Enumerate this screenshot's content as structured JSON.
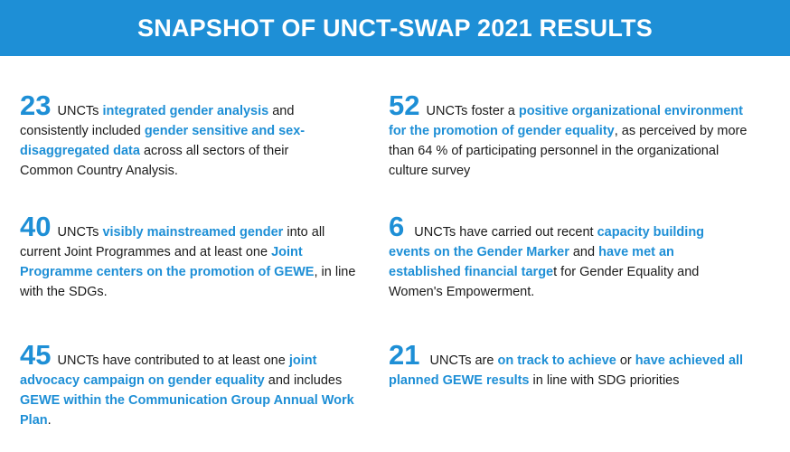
{
  "header": {
    "title": "SNAPSHOT OF UNCT-SWAP 2021 RESULTS",
    "accent_color": "#1e8fd6"
  },
  "stats": [
    {
      "number": "23",
      "t1": " UNCTs ",
      "h1": "integrated gender analysis",
      "t2": " and consistently included ",
      "h2": "gender sensitive and sex-disaggregated data",
      "t3": " across all sectors of their Common Country Analysis."
    },
    {
      "number": "52",
      "t1": " UNCTs foster a ",
      "h1": "positive organizational environment for the promotion of gender equality",
      "t2": ", as perceived by more than 64 % of participating personnel in the organizational culture survey"
    },
    {
      "number": "40",
      "t1": " UNCTs ",
      "h1": "visibly mainstreamed gender",
      "t2": " into all current Joint Programmes and at least one ",
      "h2": "Joint Programme centers on the promotion of GEWE",
      "t3": ", in line with the SDGs."
    },
    {
      "number": "6",
      "t1": "  UNCTs have carried out recent ",
      "h1": "capacity building events on the Gender Marker",
      "t2": " and ",
      "h2": "have met an established financial targe",
      "t3": "t for Gender Equality and Women's Empowerment."
    },
    {
      "number": "45",
      "t1": " UNCTs have contributed to at least one ",
      "h1": "joint advocacy campaign on gender equality",
      "t2": " and includes ",
      "h2": "GEWE within the Communication Group Annual Work Plan",
      "t3": "."
    },
    {
      "number": "21",
      "t1": "  UNCTs are ",
      "h1": "on track to achieve",
      "t2": " or ",
      "h2": "have achieved all planned GEWE results",
      "t3": " in line with SDG priorities"
    }
  ]
}
